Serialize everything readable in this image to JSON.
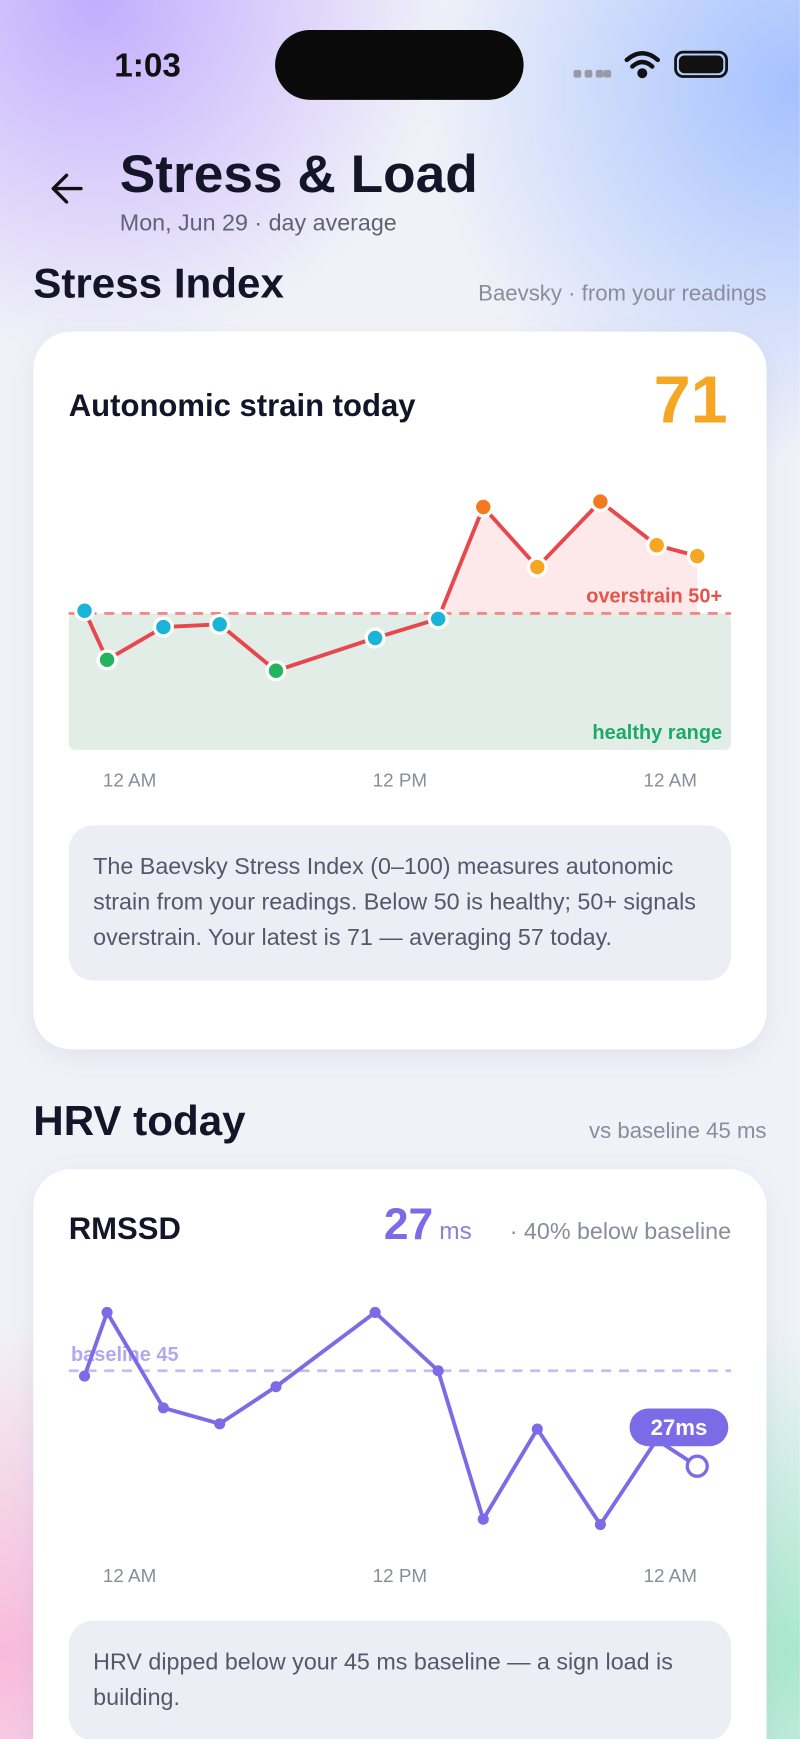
{
  "status_bar": {
    "time": "1:03"
  },
  "header": {
    "title": "Stress & Load",
    "subtitle": "Mon, Jun 29 · day average"
  },
  "stress_section": {
    "title": "Stress Index",
    "note": "Baevsky · from your readings",
    "card_title": "Autonomic strain today",
    "latest": 71,
    "chart_data": {
      "type": "line",
      "x": [
        -2,
        -1,
        1.5,
        4,
        6.5,
        10.9,
        13.7,
        15.7,
        18.1,
        20.9,
        23.4,
        25.2
      ],
      "values": [
        51,
        33,
        45,
        46,
        29,
        41,
        48,
        89,
        67,
        91,
        75,
        71
      ],
      "color": "#e5484d",
      "point_colors": [
        "#1ab4d8",
        "#22b55e",
        "#1ab4d8",
        "#1ab4d8",
        "#22b55e",
        "#1ab4d8",
        "#1ab4d8",
        "#f47a1f",
        "#f5a623",
        "#f47a1f",
        "#f5a623",
        "#f5a623"
      ],
      "xlim": [
        -2.7,
        26.7
      ],
      "xticks": [
        {
          "value": 0,
          "label": "12 AM"
        },
        {
          "value": 12,
          "label": "12 PM"
        },
        {
          "value": 24,
          "label": "12 AM"
        }
      ],
      "ylim": [
        0,
        100
      ],
      "threshold": 50,
      "threshold_label": "overstrain 50+",
      "band_label": "healthy range"
    },
    "description": "The Baevsky Stress Index (0–100) measures autonomic strain from your readings. Below 50 is healthy; 50+ signals overstrain. Your latest is 71 — averaging 57 today."
  },
  "hrv_section": {
    "title": "HRV today",
    "note": "vs baseline 45 ms",
    "card_title": "RMSSD",
    "latest": 27,
    "latest_unit": "ms",
    "latest_note": "· 40% below baseline",
    "chart_data": {
      "type": "line",
      "x": [
        -2,
        -1,
        1.5,
        4,
        6.5,
        10.9,
        13.7,
        15.7,
        18.1,
        20.9,
        23.4,
        25.2
      ],
      "values": [
        44,
        56,
        38,
        35,
        42,
        56,
        45,
        17,
        34,
        16,
        32,
        27
      ],
      "color": "#7b6be6",
      "xlim": [
        -2.7,
        26.7
      ],
      "xticks": [
        {
          "value": 0,
          "label": "12 AM"
        },
        {
          "value": 12,
          "label": "12 PM"
        },
        {
          "value": 24,
          "label": "12 AM"
        }
      ],
      "ylim": [
        10,
        60
      ],
      "threshold": 45,
      "threshold_label": "baseline 45",
      "badge": "27ms"
    },
    "description": "HRV dipped below your 45 ms baseline — a sign load is building."
  }
}
